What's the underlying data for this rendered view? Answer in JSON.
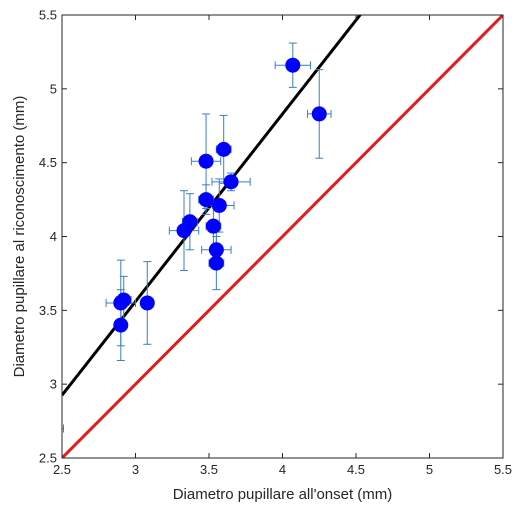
{
  "chart_data": {
    "type": "scatter",
    "title": "",
    "xlabel": "Diametro pupillare all'onset (mm)",
    "ylabel": "Diametro pupillare al riconoscimento (mm)",
    "xlim": [
      2.5,
      5.5
    ],
    "ylim": [
      2.5,
      5.5
    ],
    "xticks": [
      "2.5",
      "3",
      "3.5",
      "4",
      "4.5",
      "5",
      "5.5"
    ],
    "yticks": [
      "2.5",
      "3",
      "3.5",
      "4",
      "4.5",
      "5",
      "5.5"
    ],
    "grid": false,
    "legend": "none",
    "points": [
      {
        "x": 2.9,
        "y": 3.4,
        "xerr": 0.03,
        "yerr": 0.24
      },
      {
        "x": 2.9,
        "y": 3.55,
        "xerr": 0.1,
        "yerr": 0.29
      },
      {
        "x": 2.92,
        "y": 3.57,
        "xerr": 0.05,
        "yerr": 0.16
      },
      {
        "x": 3.08,
        "y": 3.55,
        "xerr": 0.03,
        "yerr": 0.28
      },
      {
        "x": 3.33,
        "y": 4.04,
        "xerr": 0.1,
        "yerr": 0.27
      },
      {
        "x": 3.37,
        "y": 4.1,
        "xerr": 0.05,
        "yerr": 0.19
      },
      {
        "x": 3.48,
        "y": 4.51,
        "xerr": 0.1,
        "yerr": 0.32
      },
      {
        "x": 3.48,
        "y": 4.25,
        "xerr": 0.05,
        "yerr": 0.1
      },
      {
        "x": 3.53,
        "y": 4.07,
        "xerr": 0.05,
        "yerr": 0.15
      },
      {
        "x": 3.55,
        "y": 3.91,
        "xerr": 0.1,
        "yerr": 0.13
      },
      {
        "x": 3.55,
        "y": 3.82,
        "xerr": 0.05,
        "yerr": 0.18
      },
      {
        "x": 3.57,
        "y": 4.21,
        "xerr": 0.1,
        "yerr": 0.18
      },
      {
        "x": 3.6,
        "y": 4.59,
        "xerr": 0.05,
        "yerr": 0.23
      },
      {
        "x": 3.65,
        "y": 4.37,
        "xerr": 0.13,
        "yerr": 0.06
      },
      {
        "x": 4.07,
        "y": 5.16,
        "xerr": 0.12,
        "yerr": 0.15
      },
      {
        "x": 4.25,
        "y": 4.83,
        "xerr": 0.08,
        "yerr": 0.3
      }
    ],
    "outlier_errorbar": {
      "x": 2.45,
      "y": 2.7,
      "xerr": 0.06
    },
    "fit_line": {
      "slope": 1.27,
      "intercept": -0.25,
      "color": "#000000"
    },
    "identity_line": {
      "slope": 1,
      "intercept": 0,
      "color": "#e51a1a"
    },
    "marker_color": "#0000ff",
    "errorbar_color": "#3b7fc4"
  }
}
